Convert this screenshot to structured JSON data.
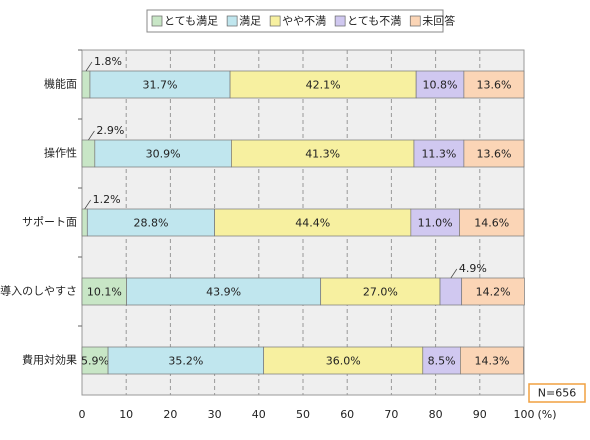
{
  "chart_data": {
    "type": "stacked-bar-horizontal",
    "categories": [
      "機能面",
      "操作性",
      "サポート面",
      "導入のしやすさ",
      "費用対効果"
    ],
    "series": [
      {
        "name": "とても満足",
        "color": "#c8e6c6",
        "values": [
          1.8,
          2.9,
          1.2,
          10.1,
          5.9
        ],
        "value_labels": [
          "1.8%",
          "2.9%",
          "1.2%",
          "10.1%",
          "5.9%"
        ]
      },
      {
        "name": "満足",
        "color": "#c0e6ee",
        "values": [
          31.7,
          30.9,
          28.8,
          43.9,
          35.2
        ],
        "value_labels": [
          "31.7%",
          "30.9%",
          "28.8%",
          "43.9%",
          "35.2%"
        ]
      },
      {
        "name": "やや不満",
        "color": "#f7f0a0",
        "values": [
          42.1,
          41.3,
          44.4,
          27.0,
          36.0
        ],
        "value_labels": [
          "42.1%",
          "41.3%",
          "44.4%",
          "27.0%",
          "36.0%"
        ]
      },
      {
        "name": "とても不満",
        "color": "#d0c8f0",
        "values": [
          10.8,
          11.3,
          11.0,
          4.9,
          8.5
        ],
        "value_labels": [
          "10.8%",
          "11.3%",
          "11.0%",
          "4.9%",
          "8.5%"
        ]
      },
      {
        "name": "未回答",
        "color": "#fbd5b6",
        "values": [
          13.6,
          13.6,
          14.6,
          14.2,
          14.3
        ],
        "value_labels": [
          "13.6%",
          "13.6%",
          "14.6%",
          "14.2%",
          "14.3%"
        ]
      }
    ],
    "xlim": [
      0,
      100
    ],
    "xticks": [
      0,
      10,
      20,
      30,
      40,
      50,
      60,
      70,
      80,
      90,
      100
    ],
    "xlabel": "(%)",
    "annotation": "N=656",
    "grid": true
  }
}
